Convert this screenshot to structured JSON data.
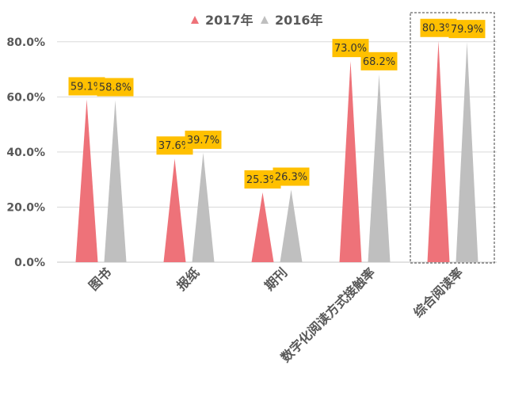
{
  "chart_data": {
    "type": "bar",
    "mark_shape": "triangle",
    "categories": [
      "图书",
      "报纸",
      "期刊",
      "数字化阅读方式接触率",
      "综合阅读率"
    ],
    "series": [
      {
        "name": "2017年",
        "values": [
          59.1,
          37.6,
          25.3,
          73.0,
          80.3
        ],
        "color": "#EE7279"
      },
      {
        "name": "2016年",
        "values": [
          58.8,
          39.7,
          26.3,
          68.2,
          79.9
        ],
        "color": "#BFBFBF"
      }
    ],
    "data_labels": [
      [
        "59.1%",
        "37.6%",
        "25.3%",
        "73.0%",
        "80.3%"
      ],
      [
        "58.8%",
        "39.7%",
        "26.3%",
        "68.2%",
        "79.9%"
      ]
    ],
    "y_ticks": [
      "0.0%",
      "20.0%",
      "40.0%",
      "60.0%",
      "80.0%"
    ],
    "ylim": [
      0,
      90
    ],
    "grid": true,
    "legend_position": "top",
    "highlighted_category": "综合阅读率",
    "label_background": "#FFC000",
    "axis_color": "#D9D9D9",
    "text_color": "#595959"
  }
}
